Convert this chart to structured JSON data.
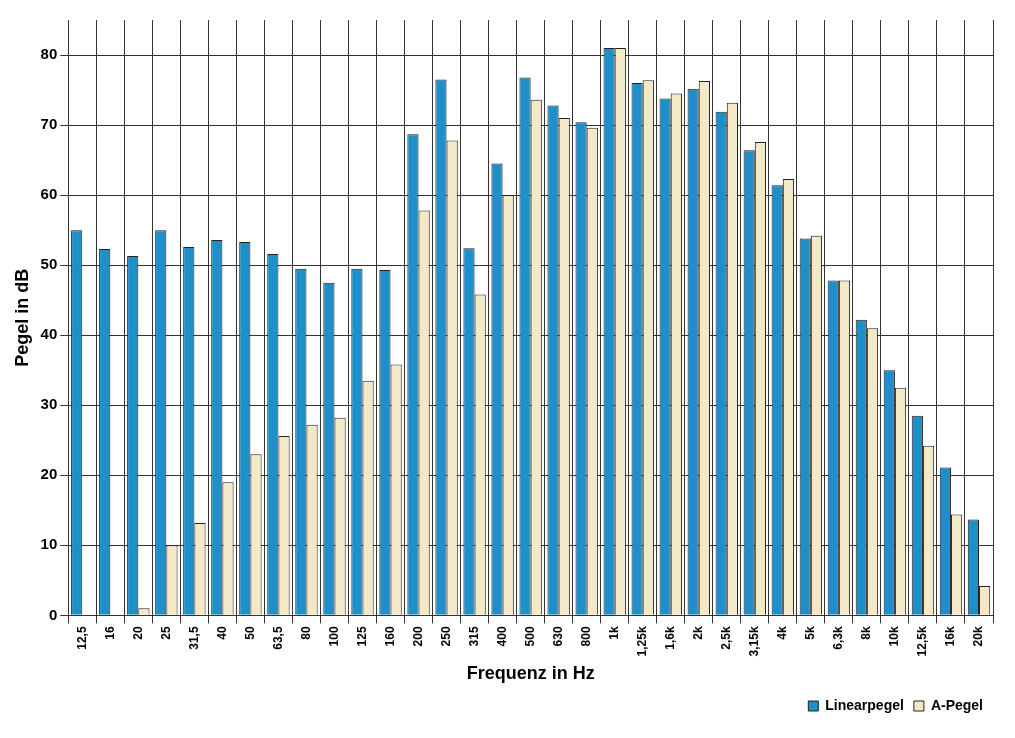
{
  "chart_data": {
    "type": "bar",
    "xlabel": "Frequenz in Hz",
    "ylabel": "Pegel in dB",
    "categories": [
      "12,5",
      "16",
      "20",
      "25",
      "31,5",
      "40",
      "50",
      "63,5",
      "80",
      "100",
      "125",
      "160",
      "200",
      "250",
      "315",
      "400",
      "500",
      "630",
      "800",
      "1k",
      "1,25k",
      "1,6k",
      "2k",
      "2,5k",
      "3,15k",
      "4k",
      "5k",
      "6,3k",
      "8k",
      "10k",
      "12,5k",
      "16k",
      "20k"
    ],
    "series": [
      {
        "name": "Linearpegel",
        "color": "#1e8fc8",
        "values": [
          55,
          52.3,
          51.3,
          55,
          52.6,
          53.6,
          53.3,
          51.6,
          49.5,
          47.5,
          49.5,
          49.3,
          68.7,
          76.5,
          52.4,
          64.5,
          76.8,
          72.8,
          70.4,
          81,
          76,
          73.8,
          75.2,
          71.9,
          66.4,
          61.4,
          53.8,
          47.8,
          42.2,
          35,
          28.5,
          21.1,
          13.7
        ]
      },
      {
        "name": "A-Pegel",
        "color": "#f3e9c6",
        "values": [
          null,
          null,
          1,
          10,
          13.2,
          19,
          23,
          25.6,
          27.2,
          28.2,
          33.5,
          35.8,
          57.8,
          67.8,
          45.8,
          60,
          73.6,
          71,
          69.6,
          81,
          76.4,
          74.5,
          76.3,
          73.2,
          67.6,
          62.3,
          54.2,
          47.8,
          41,
          32.5,
          24.2,
          14.4,
          4.2
        ]
      }
    ],
    "ylim": [
      0,
      85
    ],
    "yticks": [
      0,
      10,
      20,
      30,
      40,
      50,
      60,
      70,
      80
    ],
    "grid": true,
    "legend": "bottom right"
  }
}
